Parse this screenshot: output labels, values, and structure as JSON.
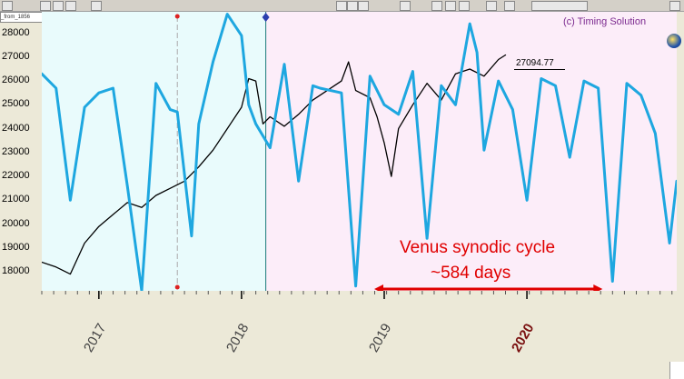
{
  "window": {
    "file_tag": "_from_1856",
    "copyright": "(c) Timing Solution",
    "price_label": "27094.77"
  },
  "colors": {
    "past_bg": "#e9fbfc",
    "future_bg": "#fcedf9",
    "price_line": "#000000",
    "cycle_line": "#1ea7e0",
    "annotation": "#e00000",
    "vline_now": "#1a7a7a",
    "marker_red": "#dd2222",
    "marker_blue": "#2b3fae"
  },
  "y_axis": {
    "ticks": [
      "28000",
      "27000",
      "26000",
      "25000",
      "24000",
      "23000",
      "22000",
      "21000",
      "20000",
      "19000",
      "18000"
    ]
  },
  "x_axis": {
    "labels": [
      {
        "text": "2017",
        "bold": false
      },
      {
        "text": "2018",
        "bold": false
      },
      {
        "text": "2019",
        "bold": false
      },
      {
        "text": "2020",
        "bold": true
      }
    ]
  },
  "annotation": {
    "line1": "Venus synodic cycle",
    "line2": "~584 days"
  },
  "chart_data": {
    "type": "line",
    "ylim": [
      17200,
      28900
    ],
    "x_labels": [
      "2017",
      "2018",
      "2019",
      "2020"
    ],
    "series": [
      {
        "role": "price",
        "x": [
          2016.6,
          2016.7,
          2016.8,
          2016.9,
          2017.0,
          2017.1,
          2017.2,
          2017.3,
          2017.4,
          2017.5,
          2017.6,
          2017.7,
          2017.8,
          2017.9,
          2018.0,
          2018.05,
          2018.1,
          2018.15,
          2018.2,
          2018.3,
          2018.4,
          2018.5,
          2018.6,
          2018.7,
          2018.75,
          2018.8,
          2018.9,
          2018.95,
          2019.0,
          2019.05,
          2019.1,
          2019.2,
          2019.3,
          2019.4,
          2019.5,
          2019.6,
          2019.7,
          2019.8,
          2019.85
        ],
        "y": [
          18400,
          18200,
          17900,
          19200,
          19900,
          20400,
          20900,
          20700,
          21200,
          21500,
          21800,
          22400,
          23100,
          24000,
          24900,
          26100,
          26000,
          24200,
          24500,
          24100,
          24600,
          25200,
          25600,
          26000,
          26800,
          25600,
          25300,
          24500,
          23400,
          22000,
          24000,
          25000,
          25900,
          25200,
          26300,
          26500,
          26200,
          26900,
          27090
        ]
      },
      {
        "role": "cycle",
        "x": [
          2016.6,
          2016.7,
          2016.8,
          2016.9,
          2017.0,
          2017.1,
          2017.2,
          2017.3,
          2017.4,
          2017.5,
          2017.55,
          2017.65,
          2017.7,
          2017.8,
          2017.9,
          2018.0,
          2018.05,
          2018.1,
          2018.2,
          2018.3,
          2018.4,
          2018.5,
          2018.55,
          2018.7,
          2018.8,
          2018.9,
          2019.0,
          2019.1,
          2019.2,
          2019.3,
          2019.4,
          2019.5,
          2019.6,
          2019.65,
          2019.7,
          2019.8,
          2019.9,
          2020.0,
          2020.1,
          2020.2,
          2020.3,
          2020.4,
          2020.5,
          2020.6,
          2020.7,
          2020.8,
          2020.9,
          2021.0,
          2021.05
        ],
        "y": [
          26300,
          25700,
          21000,
          24900,
          25500,
          25700,
          21600,
          17200,
          25900,
          24800,
          24700,
          19500,
          24200,
          26800,
          28800,
          27900,
          25000,
          24200,
          23200,
          26700,
          21800,
          25800,
          25700,
          25500,
          17400,
          26200,
          25000,
          24600,
          26400,
          19400,
          25800,
          25000,
          28400,
          27200,
          23100,
          26000,
          24800,
          21000,
          26100,
          25800,
          22800,
          26000,
          25700,
          17600,
          25900,
          25400,
          23800,
          19200,
          21800
        ]
      }
    ]
  }
}
